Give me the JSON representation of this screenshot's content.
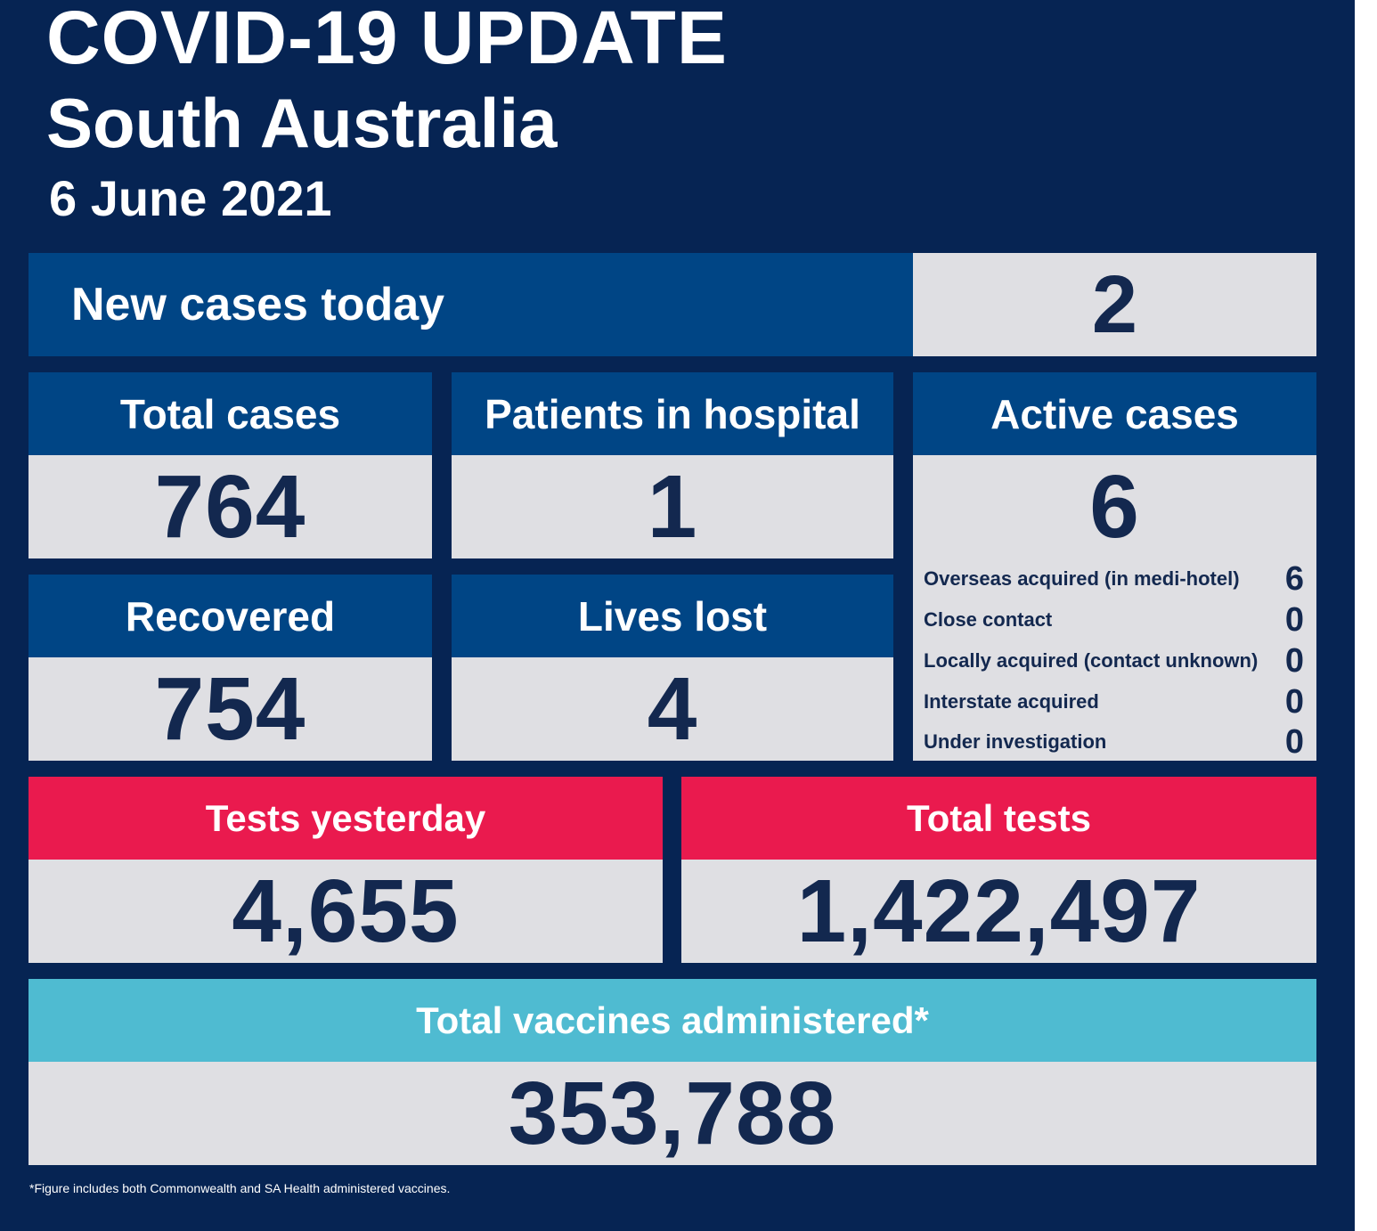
{
  "header": {
    "title_line1": "COVID-19 UPDATE",
    "title_line2": "South Australia",
    "date": "6 June 2021"
  },
  "new_cases": {
    "label": "New cases today",
    "value": "2"
  },
  "total_cases": {
    "label": "Total cases",
    "value": "764"
  },
  "patients_in_hospital": {
    "label": "Patients in hospital",
    "value": "1"
  },
  "active_cases": {
    "label": "Active cases",
    "value": "6",
    "breakdown": [
      {
        "label": "Overseas acquired (in medi-hotel)",
        "value": "6"
      },
      {
        "label": "Close contact",
        "value": "0"
      },
      {
        "label": "Locally acquired (contact unknown)",
        "value": "0"
      },
      {
        "label": "Interstate acquired",
        "value": "0"
      },
      {
        "label": "Under investigation",
        "value": "0"
      }
    ]
  },
  "recovered": {
    "label": "Recovered",
    "value": "754"
  },
  "lives_lost": {
    "label": "Lives lost",
    "value": "4"
  },
  "tests_yesterday": {
    "label": "Tests yesterday",
    "value": "4,655"
  },
  "total_tests": {
    "label": "Total tests",
    "value": "1,422,497"
  },
  "total_vaccines": {
    "label": "Total vaccines administered*",
    "value": "353,788"
  },
  "footnote": "*Figure includes both Commonwealth and SA Health administered vaccines.",
  "colors": {
    "background": "#062453",
    "header_blue": "#004585",
    "header_red": "#ea1a4e",
    "header_cyan": "#4fbbd1",
    "value_box": "#dfdfe3",
    "value_text": "#13284f"
  }
}
